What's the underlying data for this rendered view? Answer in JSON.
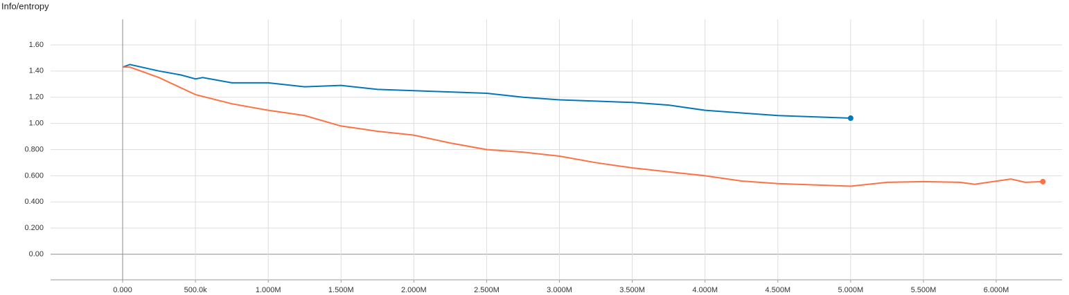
{
  "chart_data": {
    "type": "line",
    "title": "Info/entropy",
    "series": [
      {
        "color": "#0077bb",
        "x": [
          0,
          50000,
          250000,
          400000,
          500000,
          550000,
          750000,
          1000000,
          1250000,
          1500000,
          1750000,
          2000000,
          2250000,
          2500000,
          2750000,
          3000000,
          3250000,
          3500000,
          3750000,
          4000000,
          4250000,
          4500000,
          4750000,
          5000000
        ],
        "values": [
          1.43,
          1.45,
          1.4,
          1.37,
          1.34,
          1.35,
          1.31,
          1.31,
          1.28,
          1.29,
          1.26,
          1.25,
          1.24,
          1.23,
          1.2,
          1.18,
          1.17,
          1.16,
          1.14,
          1.1,
          1.08,
          1.06,
          1.05,
          1.04
        ]
      },
      {
        "color": "#ff7043",
        "x": [
          0,
          50000,
          250000,
          500000,
          750000,
          1000000,
          1250000,
          1500000,
          1750000,
          2000000,
          2250000,
          2500000,
          2750000,
          3000000,
          3250000,
          3500000,
          3750000,
          4000000,
          4250000,
          4500000,
          4750000,
          5000000,
          5250000,
          5500000,
          5750000,
          5850000,
          6100000,
          6200000,
          6320000
        ],
        "values": [
          1.43,
          1.43,
          1.35,
          1.22,
          1.15,
          1.1,
          1.06,
          0.98,
          0.94,
          0.91,
          0.85,
          0.8,
          0.78,
          0.75,
          0.7,
          0.66,
          0.63,
          0.6,
          0.56,
          0.54,
          0.53,
          0.52,
          0.55,
          0.555,
          0.55,
          0.535,
          0.575,
          0.55,
          0.555
        ]
      }
    ],
    "xlim": [
      -495000,
      6452000
    ],
    "xticks": [
      {
        "value": 0,
        "label": "0.000"
      },
      {
        "value": 500000,
        "label": "500.0k"
      },
      {
        "value": 1000000,
        "label": "1.000M"
      },
      {
        "value": 1500000,
        "label": "1.500M"
      },
      {
        "value": 2000000,
        "label": "2.000M"
      },
      {
        "value": 2500000,
        "label": "2.500M"
      },
      {
        "value": 3000000,
        "label": "3.000M"
      },
      {
        "value": 3500000,
        "label": "3.500M"
      },
      {
        "value": 4000000,
        "label": "4.000M"
      },
      {
        "value": 4500000,
        "label": "4.500M"
      },
      {
        "value": 5000000,
        "label": "5.000M"
      },
      {
        "value": 5500000,
        "label": "5.500M"
      },
      {
        "value": 6000000,
        "label": "6.000M"
      }
    ],
    "ylim": [
      -0.195,
      1.795
    ],
    "yticks": [
      {
        "value": 0,
        "label": "0.00"
      },
      {
        "value": 0.2,
        "label": "0.200"
      },
      {
        "value": 0.4,
        "label": "0.400"
      },
      {
        "value": 0.6,
        "label": "0.600"
      },
      {
        "value": 0.8,
        "label": "0.800"
      },
      {
        "value": 1,
        "label": "1.00"
      },
      {
        "value": 1.2,
        "label": "1.20"
      },
      {
        "value": 1.4,
        "label": "1.40"
      },
      {
        "value": 1.6,
        "label": "1.60"
      }
    ],
    "grid": true
  }
}
